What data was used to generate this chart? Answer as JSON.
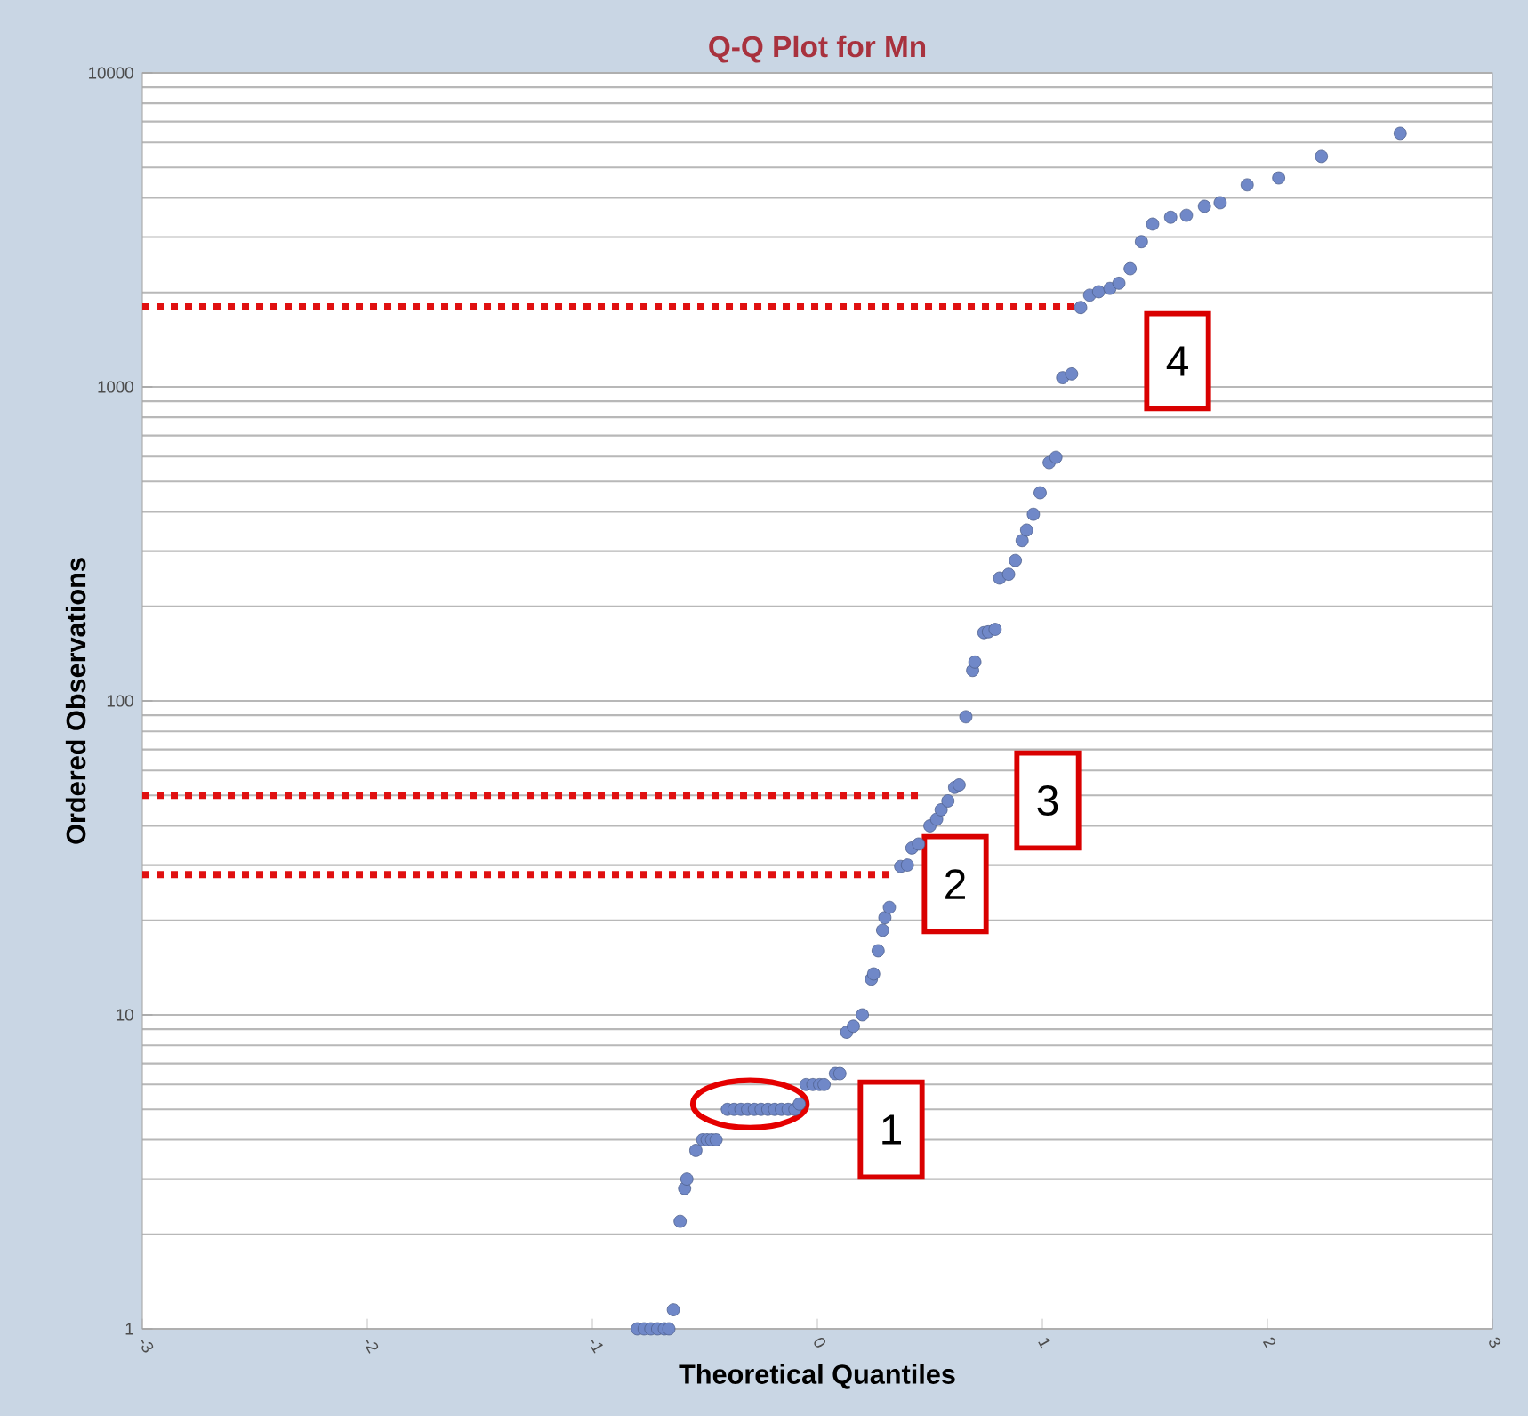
{
  "chart_data": {
    "type": "scatter",
    "title": "Q-Q Plot for Mn",
    "xlabel": "Theoretical Quantiles",
    "ylabel": "Ordered Observations",
    "xlim": [
      -3,
      3
    ],
    "xticks": [
      -3,
      -2,
      -1,
      0,
      1,
      2,
      3
    ],
    "ylim": [
      1,
      10000
    ],
    "yticks": [
      1,
      10,
      100,
      1000,
      10000
    ],
    "log": "y",
    "grid": "y",
    "marker": "circle",
    "series": [
      {
        "color": "#7088c8",
        "x": [
          -0.8,
          -0.77,
          -0.74,
          -0.71,
          -0.68,
          -0.66,
          -0.64,
          -0.61,
          -0.59,
          -0.58,
          -0.54,
          -0.51,
          -0.49,
          -0.47,
          -0.45,
          -0.4,
          -0.37,
          -0.34,
          -0.31,
          -0.28,
          -0.25,
          -0.22,
          -0.19,
          -0.16,
          -0.13,
          -0.1,
          -0.08,
          -0.05,
          -0.02,
          0.01,
          0.03,
          0.08,
          0.1,
          0.13,
          0.16,
          0.2,
          0.24,
          0.25,
          0.27,
          0.29,
          0.3,
          0.32,
          0.37,
          0.4,
          0.42,
          0.45,
          0.5,
          0.53,
          0.55,
          0.58,
          0.61,
          0.63,
          0.66,
          0.69,
          0.7,
          0.74,
          0.76,
          0.79,
          0.81,
          0.85,
          0.88,
          0.91,
          0.93,
          0.96,
          0.99,
          1.03,
          1.06,
          1.09,
          1.13,
          1.17,
          1.21,
          1.25,
          1.3,
          1.34,
          1.39,
          1.44,
          1.49,
          1.57,
          1.64,
          1.72,
          1.79,
          1.91,
          2.05,
          2.24,
          2.59
        ],
        "values": [
          1,
          1,
          1,
          1,
          1,
          1,
          1.15,
          2.2,
          2.8,
          3.0,
          3.7,
          4,
          4,
          4,
          4,
          5,
          5,
          5,
          5,
          5,
          5,
          5,
          5,
          5,
          5,
          5,
          5.2,
          6,
          6,
          6,
          6,
          6.5,
          6.5,
          8.8,
          9.2,
          10,
          13,
          13.5,
          16,
          18.6,
          20.4,
          22,
          29.7,
          30,
          34,
          35,
          40,
          42,
          45,
          48,
          53,
          54,
          89,
          125,
          133,
          165,
          166,
          169,
          246,
          253,
          280,
          324,
          350,
          393,
          460,
          574,
          597,
          1070,
          1100,
          1790,
          1960,
          2010,
          2060,
          2140,
          2380,
          2900,
          3300,
          3470,
          3520,
          3760,
          3860,
          4400,
          4630,
          5420,
          6420
        ]
      },
      {
        "type": "line",
        "color": "#e01010",
        "line_style": "dotted",
        "marker": "none",
        "x": [
          -3,
          1.17
        ],
        "values": [
          1800,
          1800
        ]
      },
      {
        "type": "line",
        "color": "#e01010",
        "line_style": "dotted",
        "marker": "none",
        "x": [
          -3,
          0.45
        ],
        "values": [
          50,
          50
        ]
      },
      {
        "type": "line",
        "color": "#e01010",
        "line_style": "dotted",
        "marker": "none",
        "x": [
          -3,
          0.33
        ],
        "values": [
          28,
          28
        ]
      }
    ],
    "annotations": [
      "1",
      "2",
      "3",
      "4"
    ]
  }
}
